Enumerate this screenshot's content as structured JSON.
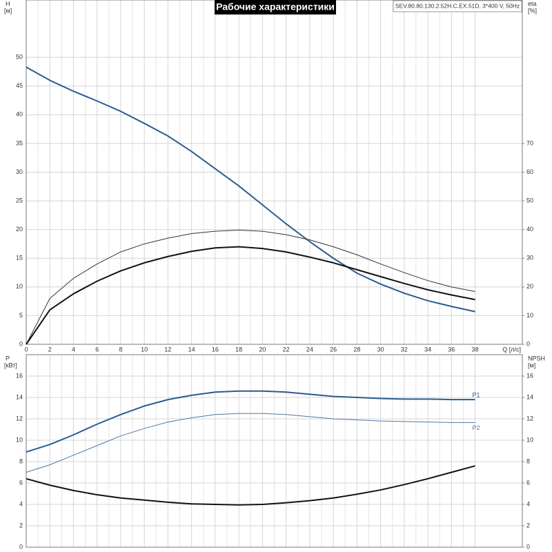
{
  "chart_data": [
    {
      "type": "line",
      "title": "Рабочие характеристики",
      "subtitle": "SEV.80.80.130.2.52H.C.EX.51D, 3*400 V, 50Hz",
      "ylabel": "H",
      "yunit": "[м]",
      "y2label": "eta",
      "y2unit": "[%]",
      "xlabel": "Q [л/с]",
      "x": [
        0,
        2,
        4,
        6,
        8,
        10,
        12,
        14,
        16,
        18,
        20,
        22,
        24,
        26,
        28,
        30,
        32,
        34,
        36,
        38
      ],
      "xlim": [
        0,
        42
      ],
      "xticks": [
        0,
        2,
        4,
        6,
        8,
        10,
        12,
        14,
        16,
        18,
        20,
        22,
        24,
        26,
        28,
        30,
        32,
        34,
        36,
        38
      ],
      "ylim": [
        0,
        60
      ],
      "yticks": [
        0,
        5,
        10,
        15,
        20,
        25,
        30,
        35,
        40,
        45,
        50
      ],
      "y2lim": [
        0,
        120
      ],
      "y2ticks": [
        0,
        10,
        20,
        30,
        40,
        50,
        60,
        70
      ],
      "grid": true,
      "series": [
        {
          "color": "#2b5b8e",
          "width": 2,
          "values": [
            48.3,
            46,
            44.1,
            42.4,
            40.6,
            38.5,
            36.3,
            33.6,
            30.6,
            27.6,
            24.3,
            21.0,
            17.9,
            15.0,
            12.4,
            10.5,
            8.9,
            7.6,
            6.6,
            5.7
          ]
        },
        {
          "color": "#333333",
          "width": 1,
          "axis": "y2",
          "values": [
            0,
            16,
            23,
            28,
            32.2,
            35,
            37,
            38.6,
            39.4,
            39.8,
            39.4,
            38.2,
            36.4,
            34,
            31.2,
            28,
            25,
            22.2,
            20,
            18.4
          ]
        },
        {
          "color": "#111111",
          "width": 2,
          "axis": "y2",
          "values": [
            0,
            12,
            17.6,
            22,
            25.6,
            28.4,
            30.6,
            32.4,
            33.6,
            34,
            33.4,
            32.2,
            30.4,
            28.4,
            26,
            23.6,
            21.2,
            19,
            17.2,
            15.6
          ]
        }
      ]
    },
    {
      "type": "line",
      "ylabel": "P",
      "yunit": "[кВт]",
      "y2label": "NPSH",
      "y2unit": "[м]",
      "x": [
        0,
        2,
        4,
        6,
        8,
        10,
        12,
        14,
        16,
        18,
        20,
        22,
        24,
        26,
        28,
        30,
        32,
        34,
        36,
        38
      ],
      "xlim": [
        0,
        42
      ],
      "ylim": [
        0,
        18
      ],
      "yticks": [
        0,
        2,
        4,
        6,
        8,
        10,
        12,
        14,
        16
      ],
      "y2lim": [
        0,
        18
      ],
      "y2ticks": [
        0,
        2,
        4,
        6,
        8,
        10,
        12,
        14,
        16
      ],
      "grid": true,
      "series": [
        {
          "name": "P1",
          "color": "#2b5b8e",
          "width": 2,
          "values": [
            8.9,
            9.6,
            10.5,
            11.5,
            12.4,
            13.2,
            13.8,
            14.2,
            14.5,
            14.6,
            14.6,
            14.5,
            14.3,
            14.1,
            14.0,
            13.9,
            13.85,
            13.85,
            13.8,
            13.8
          ]
        },
        {
          "name": "P2",
          "color": "#4a78a8",
          "width": 1,
          "values": [
            7.0,
            7.7,
            8.6,
            9.5,
            10.4,
            11.1,
            11.7,
            12.1,
            12.4,
            12.5,
            12.5,
            12.4,
            12.2,
            12.0,
            11.9,
            11.8,
            11.75,
            11.7,
            11.65,
            11.65
          ]
        },
        {
          "color": "#111111",
          "width": 2,
          "axis": "y2",
          "values": [
            6.4,
            5.8,
            5.3,
            4.9,
            4.6,
            4.4,
            4.2,
            4.05,
            4.0,
            3.95,
            4.0,
            4.15,
            4.35,
            4.6,
            4.95,
            5.35,
            5.85,
            6.4,
            7.0,
            7.6
          ]
        }
      ]
    }
  ]
}
